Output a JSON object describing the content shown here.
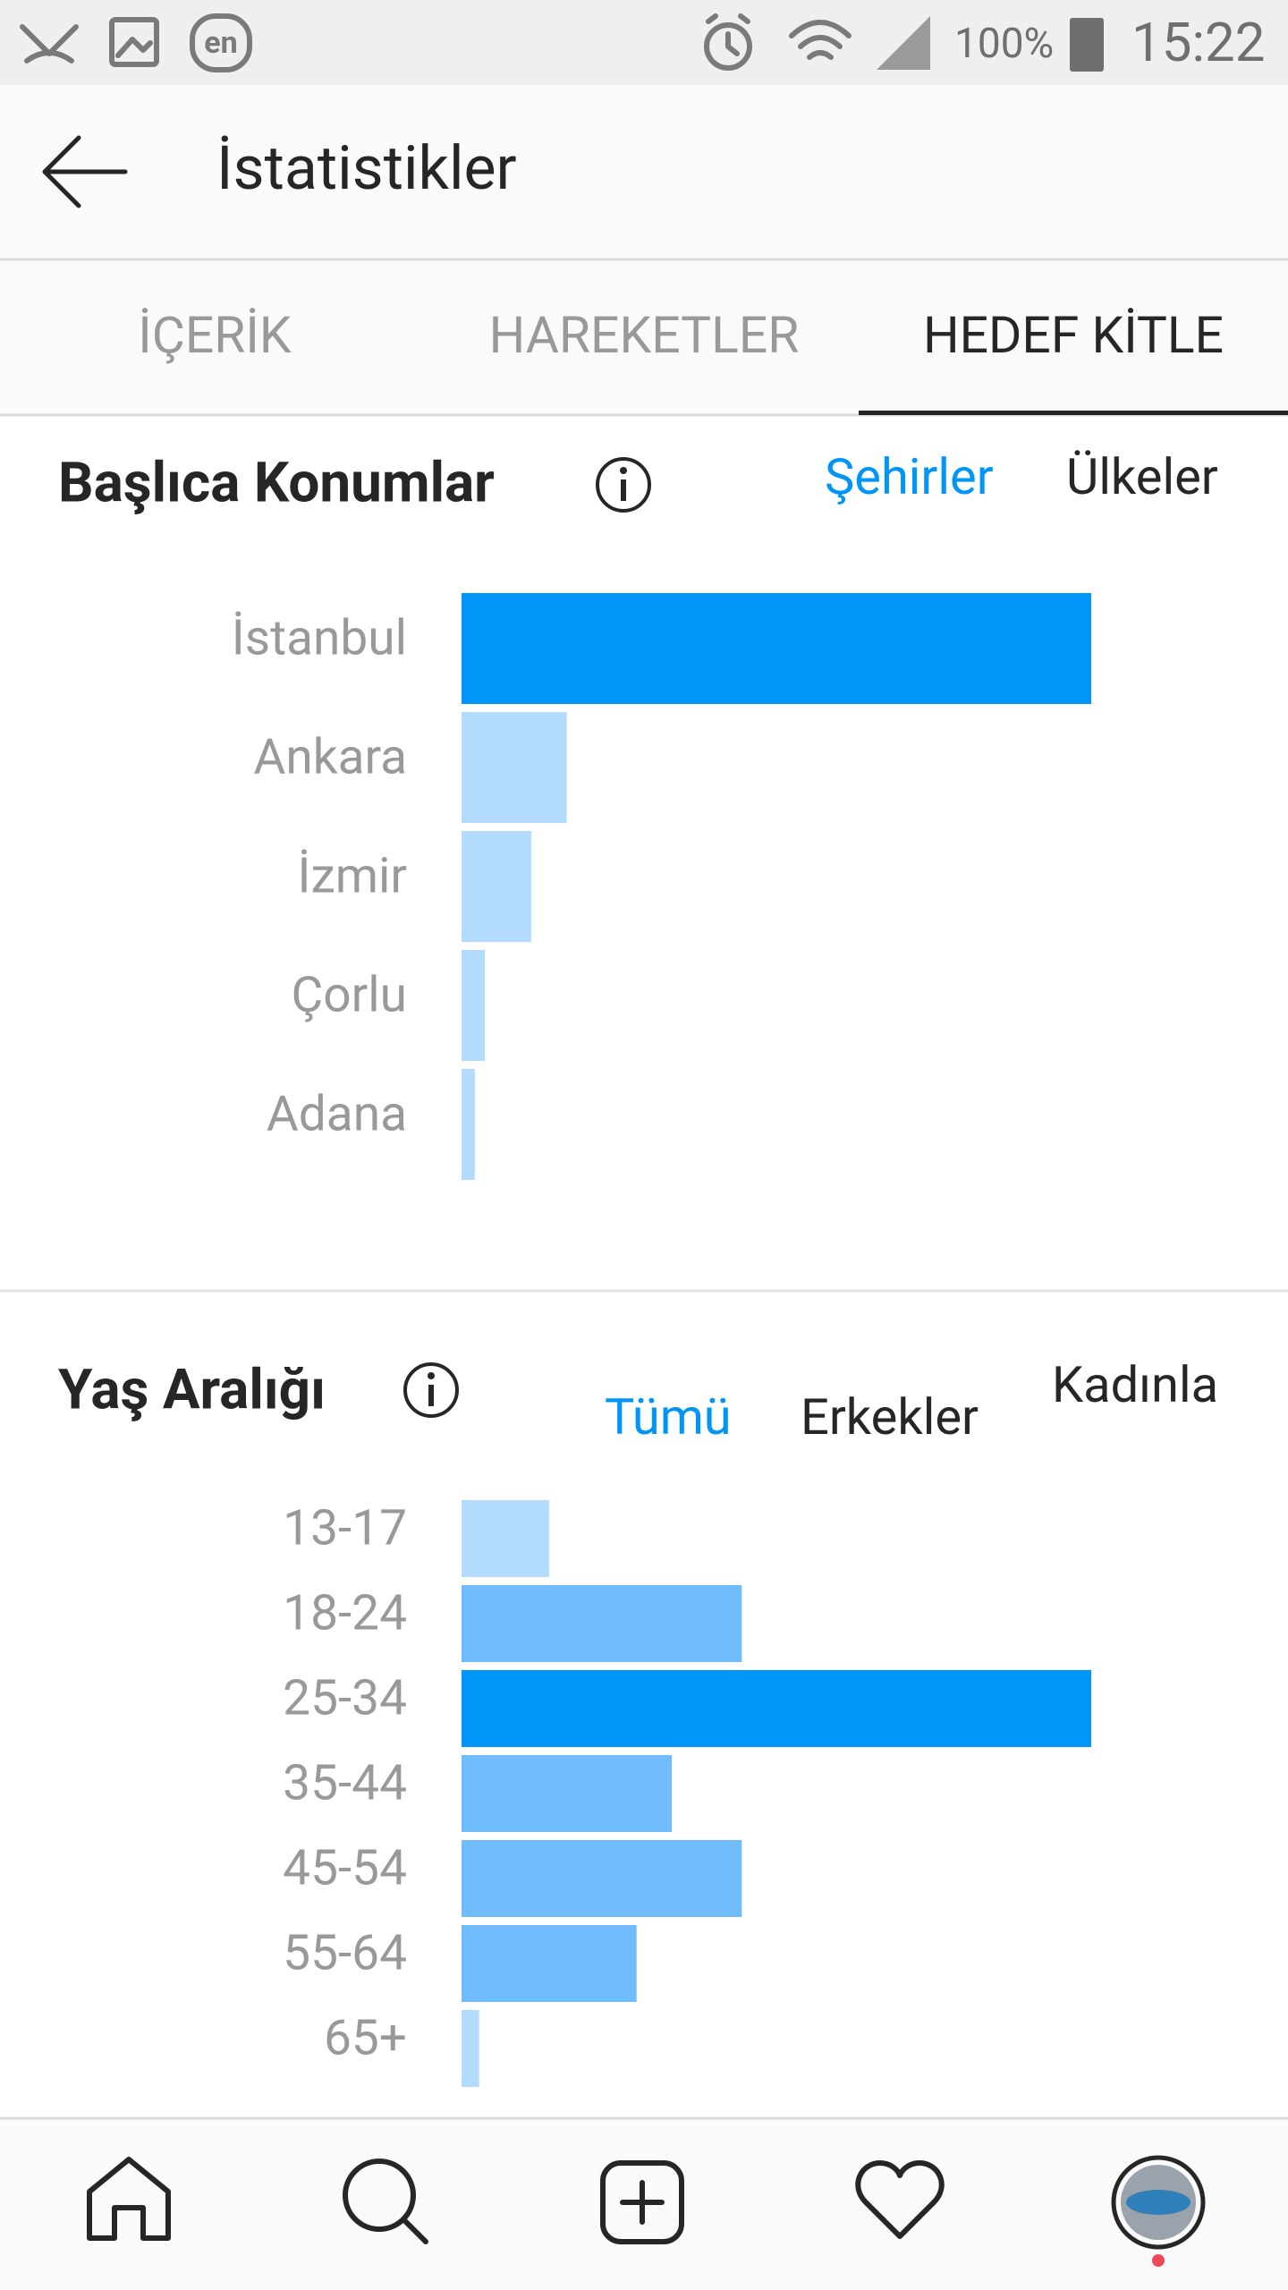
{
  "status_bar": {
    "keyboard": "en",
    "battery": "100%",
    "time": "15:22"
  },
  "header": {
    "title": "İstatistikler"
  },
  "tabs": [
    "İÇERİK",
    "HAREKETLER",
    "HEDEF KİTLE"
  ],
  "locations": {
    "title": "Başlıca Konumlar",
    "filters": [
      "Şehirler",
      "Ülkeler"
    ],
    "chart": {
      "type": "bar",
      "categories": [
        "İstanbul",
        "Ankara",
        "İzmir",
        "Çorlu",
        "Adana"
      ],
      "values": [
        100,
        16.7,
        11.1,
        3.7,
        2.1
      ],
      "colors": [
        "#0095f6",
        "#b3dbfd",
        "#b3dbfd",
        "#b3dbfd",
        "#b3dbfd"
      ]
    }
  },
  "age": {
    "title": "Yaş Aralığı",
    "filters": [
      "Tümü",
      "Erkekler",
      "Kadınla"
    ],
    "chart": {
      "type": "bar",
      "categories": [
        "13-17",
        "18-24",
        "25-34",
        "35-44",
        "45-54",
        "55-64",
        "65+"
      ],
      "values": [
        13.9,
        44.5,
        100,
        33.4,
        44.5,
        27.8,
        2.8
      ],
      "colors": [
        "#b3dbfd",
        "#6fbbfc",
        "#0095f6",
        "#6fbbfc",
        "#6fbbfc",
        "#6fbbfc",
        "#b3dbfd"
      ]
    }
  }
}
